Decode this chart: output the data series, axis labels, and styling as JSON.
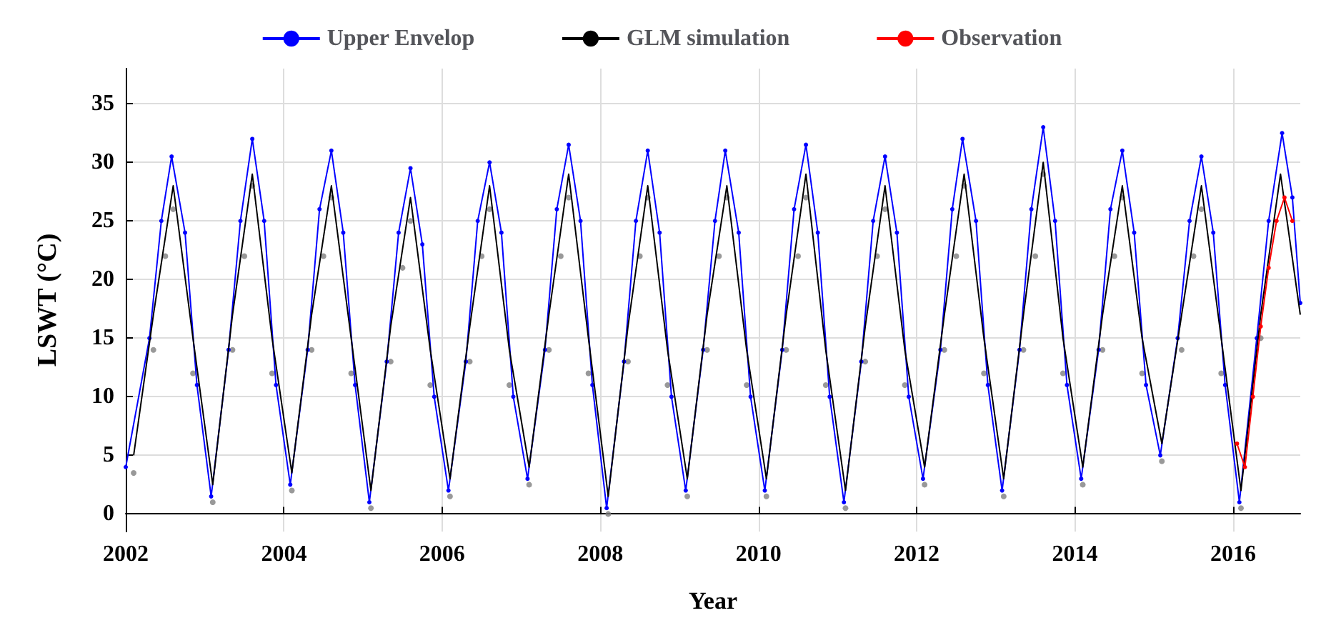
{
  "chart_data": {
    "type": "line",
    "xlabel": "Year",
    "ylabel": "LSWT (°C)",
    "xlim": [
      2002,
      2016.85
    ],
    "xticks": [
      2002,
      2004,
      2006,
      2008,
      2010,
      2012,
      2014,
      2016
    ],
    "ylim": [
      -1.5,
      38
    ],
    "yticks": [
      0,
      5,
      10,
      15,
      20,
      25,
      30,
      35
    ],
    "grid": true,
    "legend": "top",
    "series": [
      {
        "type": "scatter",
        "color": "#808080",
        "marker": "circle",
        "x": [
          2002.1,
          2002.35,
          2002.5,
          2002.6,
          2002.85,
          2003.1,
          2003.35,
          2003.5,
          2003.6,
          2003.85,
          2004.1,
          2004.35,
          2004.5,
          2004.6,
          2004.85,
          2005.1,
          2005.35,
          2005.5,
          2005.6,
          2005.85,
          2006.1,
          2006.35,
          2006.5,
          2006.6,
          2006.85,
          2007.1,
          2007.35,
          2007.5,
          2007.6,
          2007.85,
          2008.1,
          2008.35,
          2008.5,
          2008.6,
          2008.85,
          2009.1,
          2009.35,
          2009.5,
          2009.6,
          2009.85,
          2010.1,
          2010.35,
          2010.5,
          2010.6,
          2010.85,
          2011.1,
          2011.35,
          2011.5,
          2011.6,
          2011.85,
          2012.1,
          2012.35,
          2012.5,
          2012.6,
          2012.85,
          2013.1,
          2013.35,
          2013.5,
          2013.6,
          2013.85,
          2014.1,
          2014.35,
          2014.5,
          2014.6,
          2014.85,
          2015.1,
          2015.35,
          2015.5,
          2015.6,
          2015.85,
          2016.1,
          2016.35
        ],
        "values": [
          3.5,
          14,
          22,
          26,
          12,
          1,
          14,
          22,
          28,
          12,
          2,
          14,
          22,
          27,
          12,
          0.5,
          13,
          21,
          25,
          11,
          1.5,
          13,
          22,
          26,
          11,
          2.5,
          14,
          22,
          27,
          12,
          0,
          13,
          22,
          27,
          11,
          1.5,
          14,
          22,
          27,
          11,
          1.5,
          14,
          22,
          27,
          11,
          0.5,
          13,
          22,
          26,
          11,
          2.5,
          14,
          22,
          28,
          12,
          1.5,
          14,
          22,
          29,
          12,
          2.5,
          14,
          22,
          27,
          12,
          4.5,
          14,
          22,
          26,
          12,
          0.5,
          15
        ]
      },
      {
        "name": "Upper Envelop",
        "color": "#0000ff",
        "marker": "circle",
        "x": [
          2002.0,
          2002.3,
          2002.45,
          2002.58,
          2002.75,
          2002.9,
          2003.08,
          2003.3,
          2003.45,
          2003.6,
          2003.75,
          2003.9,
          2004.08,
          2004.3,
          2004.45,
          2004.6,
          2004.75,
          2004.9,
          2005.08,
          2005.3,
          2005.45,
          2005.6,
          2005.75,
          2005.9,
          2006.08,
          2006.3,
          2006.45,
          2006.6,
          2006.75,
          2006.9,
          2007.08,
          2007.3,
          2007.45,
          2007.6,
          2007.75,
          2007.9,
          2008.08,
          2008.3,
          2008.45,
          2008.6,
          2008.75,
          2008.9,
          2009.08,
          2009.3,
          2009.45,
          2009.58,
          2009.75,
          2009.9,
          2010.08,
          2010.3,
          2010.45,
          2010.6,
          2010.75,
          2010.9,
          2011.08,
          2011.3,
          2011.45,
          2011.6,
          2011.75,
          2011.9,
          2012.08,
          2012.3,
          2012.45,
          2012.58,
          2012.75,
          2012.9,
          2013.08,
          2013.3,
          2013.45,
          2013.6,
          2013.75,
          2013.9,
          2014.08,
          2014.3,
          2014.45,
          2014.6,
          2014.75,
          2014.9,
          2015.08,
          2015.3,
          2015.45,
          2015.6,
          2015.75,
          2015.9,
          2016.08,
          2016.3,
          2016.45,
          2016.62,
          2016.75,
          2016.85
        ],
        "values": [
          4,
          15,
          25,
          30.5,
          24,
          11,
          1.5,
          14,
          25,
          32,
          25,
          11,
          2.5,
          14,
          26,
          31,
          24,
          11,
          1,
          13,
          24,
          29.5,
          23,
          10,
          2,
          13,
          25,
          30,
          24,
          10,
          3,
          14,
          26,
          31.5,
          25,
          11,
          0.5,
          13,
          25,
          31,
          24,
          10,
          2,
          14,
          25,
          31,
          24,
          10,
          2,
          14,
          26,
          31.5,
          24,
          10,
          1,
          13,
          25,
          30.5,
          24,
          10,
          3,
          14,
          26,
          32,
          25,
          11,
          2,
          14,
          26,
          33,
          25,
          11,
          3,
          14,
          26,
          31,
          24,
          11,
          5,
          15,
          25,
          30.5,
          24,
          11,
          1,
          15,
          25,
          32.5,
          27,
          18
        ]
      },
      {
        "name": "GLM simulation",
        "color": "#000000",
        "marker": "none",
        "x": [
          2002.1,
          2002.35,
          2002.6,
          2002.85,
          2003.1,
          2003.35,
          2003.6,
          2003.85,
          2004.1,
          2004.35,
          2004.6,
          2004.85,
          2005.1,
          2005.35,
          2005.6,
          2005.85,
          2006.1,
          2006.35,
          2006.6,
          2006.85,
          2007.1,
          2007.35,
          2007.6,
          2007.85,
          2008.1,
          2008.35,
          2008.6,
          2008.85,
          2009.1,
          2009.35,
          2009.6,
          2009.85,
          2010.1,
          2010.35,
          2010.6,
          2010.85,
          2011.1,
          2011.35,
          2011.6,
          2011.85,
          2012.1,
          2012.35,
          2012.6,
          2012.85,
          2013.1,
          2013.35,
          2013.6,
          2013.85,
          2014.1,
          2014.35,
          2014.6,
          2014.85,
          2015.1,
          2015.35,
          2015.6,
          2015.85,
          2016.1,
          2016.35,
          2016.6,
          2016.85
        ],
        "values": [
          5,
          17,
          28,
          15,
          2.5,
          17,
          29,
          15,
          3.5,
          17,
          28,
          15,
          2,
          16,
          27,
          14,
          3,
          16,
          28,
          14,
          4,
          17,
          29,
          15,
          1.5,
          16,
          28,
          14,
          3,
          17,
          28,
          14,
          3,
          17,
          29,
          14,
          2,
          16,
          28,
          14,
          4,
          17,
          29,
          15,
          3,
          17,
          30,
          15,
          4,
          17,
          28,
          15,
          6,
          17,
          28,
          15,
          2,
          17,
          29,
          17
        ]
      },
      {
        "name": "Observation",
        "color": "#ff0000",
        "marker": "circle",
        "x": [
          2016.05,
          2016.15,
          2016.25,
          2016.35,
          2016.45,
          2016.55,
          2016.65,
          2016.75
        ],
        "values": [
          6,
          4,
          10,
          16,
          21,
          25,
          27,
          25
        ]
      }
    ]
  }
}
